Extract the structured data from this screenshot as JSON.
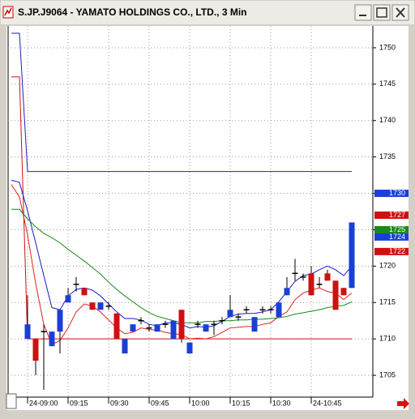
{
  "chart_data": {
    "type": "candlestick",
    "title": "S.JP.J9064 - YAMATO HOLDINGS CO., LTD., 3 Min",
    "ylim": [
      1702,
      1753
    ],
    "yticks": [
      1705,
      1710,
      1715,
      1720,
      1725,
      1730,
      1735,
      1740,
      1745,
      1750
    ],
    "xticks": [
      {
        "value": 2,
        "label": "24-09:00"
      },
      {
        "value": 7,
        "label": "09:15"
      },
      {
        "value": 12,
        "label": "09:30"
      },
      {
        "value": 17,
        "label": "09:45"
      },
      {
        "value": 22,
        "label": "10:00"
      },
      {
        "value": 27,
        "label": "10:15"
      },
      {
        "value": 32,
        "label": "10:30"
      },
      {
        "value": 37,
        "label": "24-10:45"
      }
    ],
    "grid": true,
    "up_color": "#1a3fd6",
    "down_color": "#d01010",
    "doji_color": "#000000",
    "open": [
      null,
      null,
      1710,
      1710,
      1711,
      1709,
      1711,
      1715,
      1717.5,
      1717,
      1715,
      1714,
      1714.5,
      1713.5,
      1708,
      1711,
      1712.5,
      1711.5,
      1711,
      1712,
      1710,
      1714,
      1708,
      1712,
      1711,
      1712,
      1712.5,
      1713,
      1713,
      1714,
      1711,
      1714,
      1714,
      1713,
      1716,
      1719,
      1718.5,
      1719,
      1717.5,
      1719,
      1718,
      1717,
      1717
    ],
    "high": [
      null,
      null,
      1716,
      1710,
      1712,
      1711,
      1714,
      1717,
      1718.5,
      1717,
      1715,
      1715,
      1715,
      1713.5,
      1710,
      1712,
      1713,
      1712,
      1712,
      1712.5,
      1712.5,
      1714,
      1709.5,
      1712.5,
      1712,
      1712.5,
      1713,
      1716,
      1713.5,
      1714.5,
      1713,
      1714.5,
      1714.5,
      1715,
      1718.5,
      1721,
      1719,
      1720,
      1718.5,
      1719.5,
      1718,
      1717,
      1726
    ],
    "low": [
      null,
      null,
      1710,
      1705,
      1703,
      1709,
      1708,
      1715,
      1716.5,
      1716,
      1714,
      1714,
      1714,
      1710,
      1708,
      1711,
      1712,
      1711,
      1711,
      1711.5,
      1710,
      1709.5,
      1708,
      1711.5,
      1711,
      1710.5,
      1712,
      1713,
      1712.5,
      1713.5,
      1711,
      1713.5,
      1713.5,
      1713,
      1716,
      1718,
      1718,
      1716,
      1717,
      1718,
      1714,
      1716,
      1717
    ],
    "close": [
      null,
      null,
      1712,
      1707,
      1711,
      1711,
      1714,
      1716,
      1717.5,
      1716,
      1714,
      1715,
      1714.5,
      1710,
      1710,
      1712,
      1712.5,
      1711.5,
      1712,
      1712,
      1712.5,
      1710,
      1709.5,
      1712,
      1712,
      1712,
      1712.5,
      1714,
      1713,
      1714,
      1713,
      1714,
      1714,
      1715,
      1717,
      1719,
      1718.5,
      1716,
      1717.5,
      1718,
      1714,
      1716,
      1726
    ],
    "lines": [
      {
        "color": "#2020c0",
        "values": [
          1752,
          1752,
          1733,
          1733,
          1733,
          1733,
          1733,
          1733,
          1733,
          1733,
          1733,
          1733,
          1733,
          1733,
          1733,
          1733,
          1733,
          1733,
          1733,
          1733,
          1733,
          1733,
          1733,
          1733,
          1733,
          1733,
          1733,
          1733,
          1733,
          1733,
          1733,
          1733,
          1733,
          1733,
          1733,
          1733,
          1733,
          1733,
          1733,
          1733,
          1733,
          1733,
          1733
        ]
      },
      {
        "color": "#d01010",
        "values": [
          1746,
          1746,
          1710,
          1710,
          1710,
          1710,
          1710,
          1710,
          1710,
          1710,
          1710,
          1710,
          1710,
          1710,
          1710,
          1710,
          1710,
          1710,
          1710,
          1710,
          1710,
          1710,
          1710,
          1710,
          1710,
          1710,
          1710,
          1710,
          1710,
          1710,
          1710,
          1710,
          1710,
          1710,
          1710,
          1710,
          1710,
          1710,
          1710,
          1710,
          1710,
          1710,
          1710
        ]
      },
      {
        "color": "#1a1acc",
        "values": [
          1731.8,
          1731.5,
          1727.6,
          1723.2,
          1718.7,
          1714.3,
          1714.0,
          1715.9,
          1716.8,
          1717.0,
          1716.7,
          1715.9,
          1714.8,
          1713.7,
          1712.8,
          1712.8,
          1712.6,
          1712.0,
          1711.8,
          1712.2,
          1712.2,
          1712.0,
          1711.5,
          1711.7,
          1711.6,
          1711.8,
          1712.4,
          1713.1,
          1713.4,
          1713.5,
          1713.5,
          1713.7,
          1714.0,
          1715.1,
          1716.5,
          1717.9,
          1718.7,
          1718.9,
          1719.5,
          1720.0,
          1719.5,
          1718.7,
          1720.0
        ]
      },
      {
        "color": "#e02020",
        "values": [
          1731.2,
          1729.5,
          1724.3,
          1717.6,
          1712.0,
          1709.2,
          1709.8,
          1711.5,
          1713.7,
          1714.8,
          1714.5,
          1713.7,
          1712.6,
          1711.5,
          1710.7,
          1710.9,
          1711.5,
          1711.3,
          1711.2,
          1710.9,
          1710.7,
          1710.6,
          1710.0,
          1710.1,
          1710.0,
          1710.3,
          1710.9,
          1711.5,
          1711.6,
          1711.7,
          1711.7,
          1712.0,
          1712.2,
          1713.1,
          1713.7,
          1715.4,
          1716.3,
          1716.7,
          1717.0,
          1716.5,
          1716.3,
          1715.4,
          1716.3
        ]
      },
      {
        "color": "#1a8a1a",
        "values": [
          1727.8,
          1727.8,
          1726.5,
          1725.4,
          1724.5,
          1723.9,
          1723.2,
          1722.3,
          1721.5,
          1720.7,
          1719.8,
          1718.9,
          1717.8,
          1716.8,
          1715.9,
          1715.1,
          1714.3,
          1713.6,
          1713.1,
          1712.8,
          1712.5,
          1712.2,
          1712.2,
          1712.2,
          1712.4,
          1712.4,
          1712.5,
          1712.5,
          1712.6,
          1712.6,
          1712.7,
          1712.7,
          1712.8,
          1712.9,
          1713.1,
          1713.4,
          1713.6,
          1713.8,
          1714.0,
          1714.3,
          1714.5,
          1714.6,
          1715.1
        ]
      }
    ],
    "price_markers": [
      {
        "value": 1730,
        "color": "#1a3fd6"
      },
      {
        "value": 1727,
        "color": "#d01010"
      },
      {
        "value": 1725,
        "color": "#1a8a1a"
      },
      {
        "value": 1724,
        "color": "#1a3fd6"
      },
      {
        "value": 1722,
        "color": "#d01010"
      }
    ]
  }
}
